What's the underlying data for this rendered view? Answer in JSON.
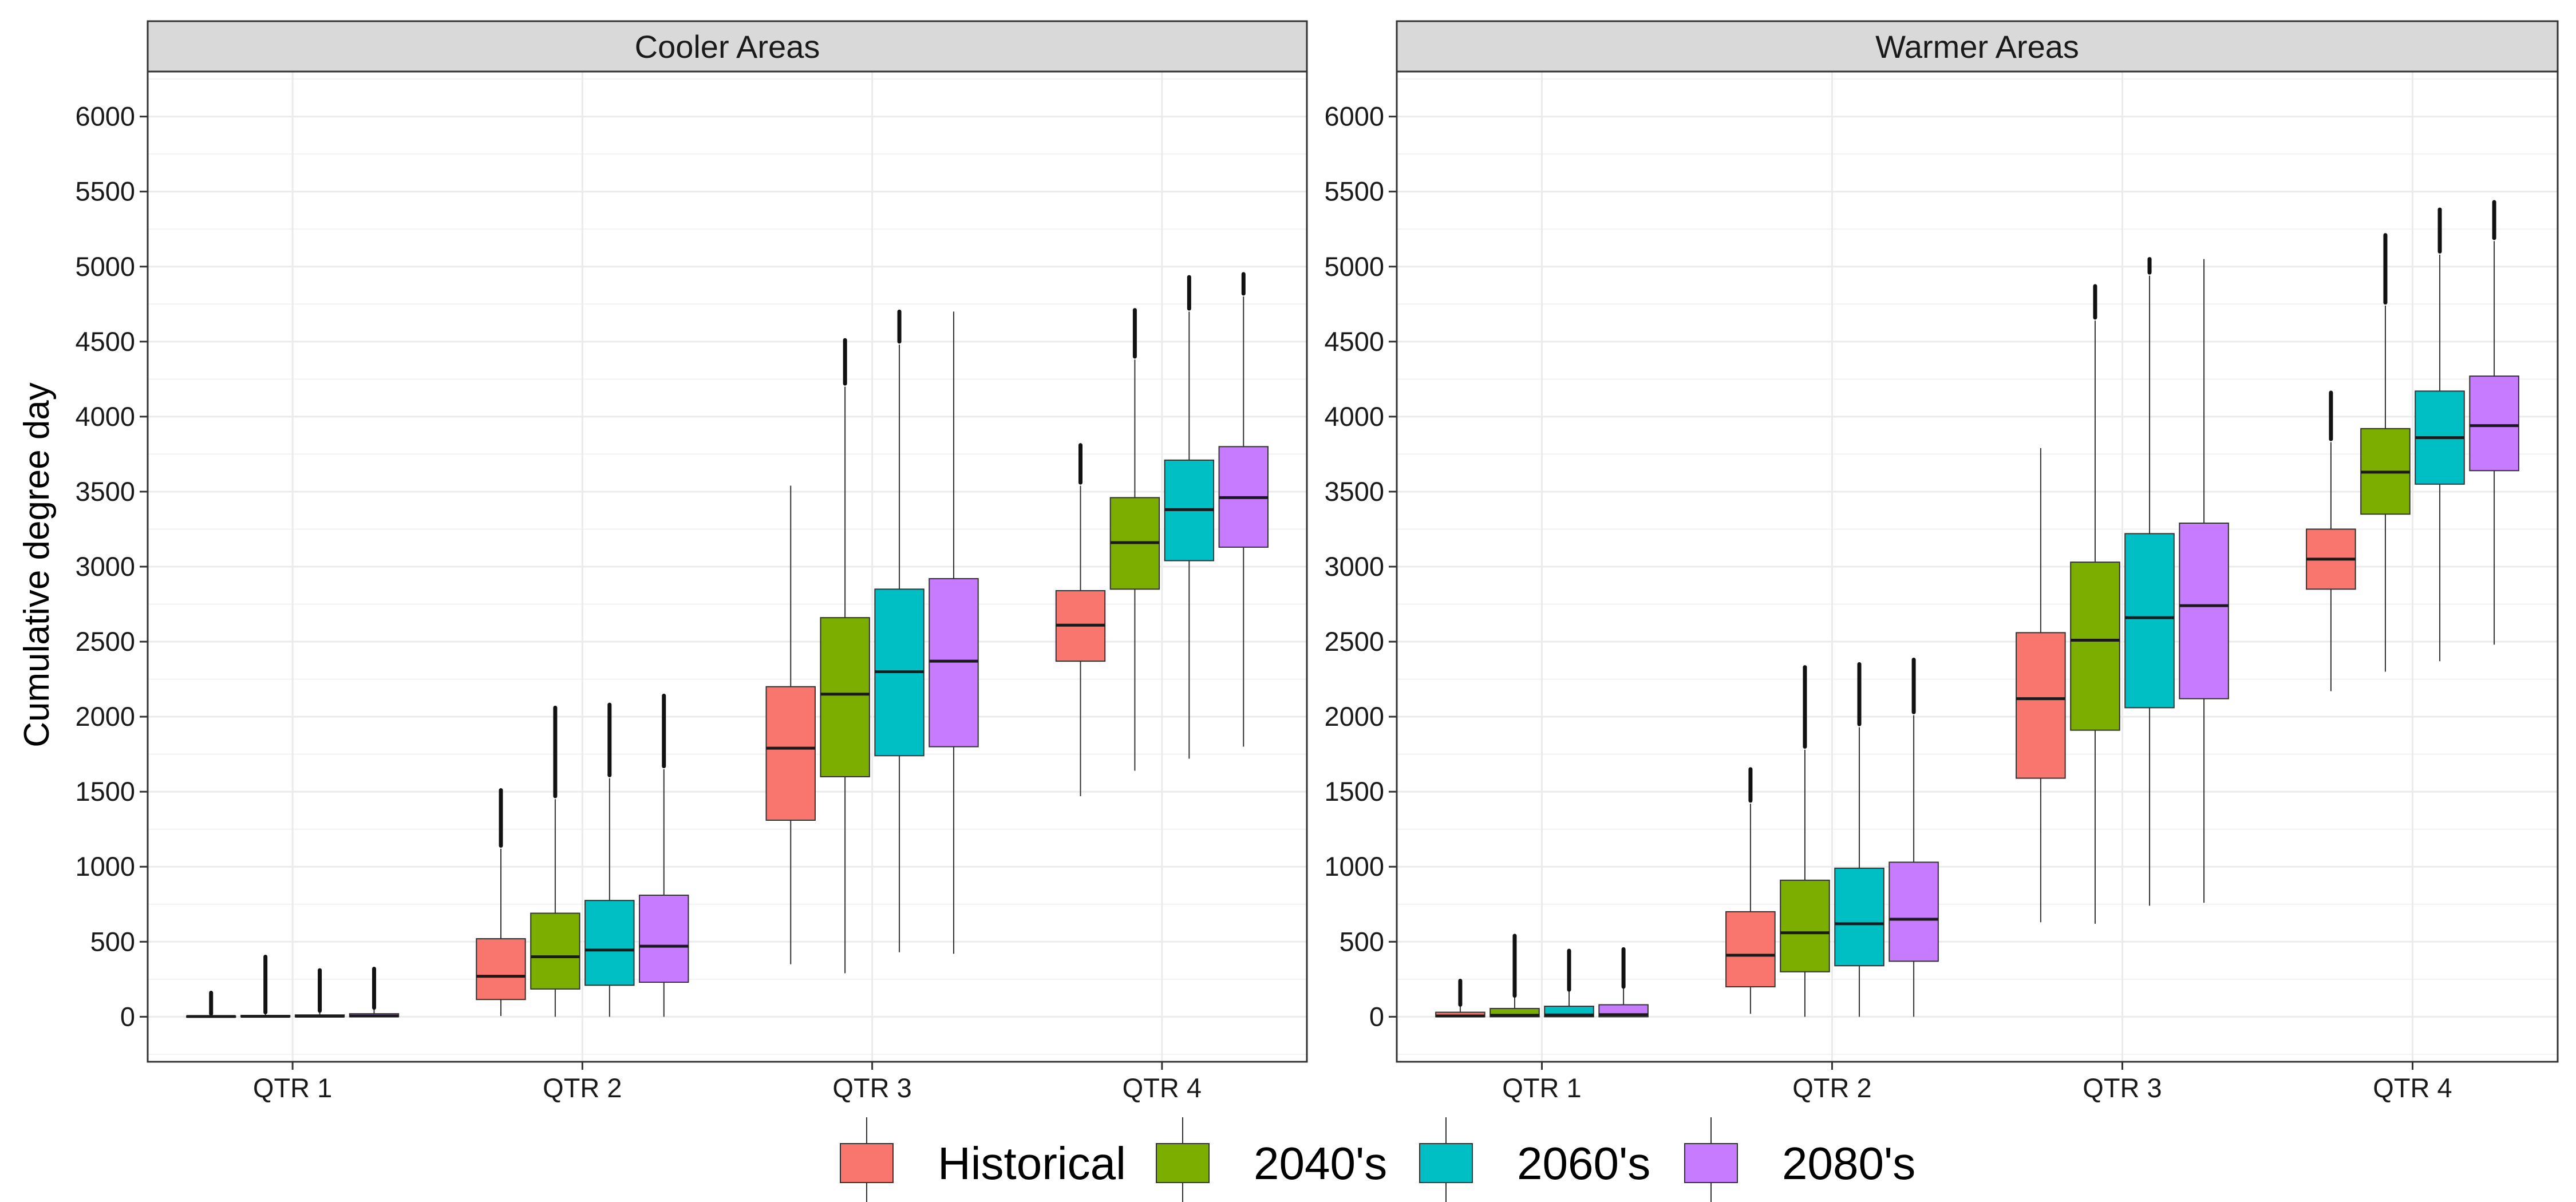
{
  "chart_data": {
    "type": "box",
    "ylabel": "Cumulative degree day",
    "xlabel": "",
    "ylim": [
      -300,
      6300
    ],
    "yticks": [
      0,
      500,
      1000,
      1500,
      2000,
      2500,
      3000,
      3500,
      4000,
      4500,
      5000,
      5500,
      6000
    ],
    "categories": [
      "QTR 1",
      "QTR 2",
      "QTR 3",
      "QTR 4"
    ],
    "grid": true,
    "legend_position": "bottom",
    "series": [
      {
        "name": "Historical",
        "color": "#F8766D"
      },
      {
        "name": "2040's",
        "color": "#7CAE00"
      },
      {
        "name": "2060's",
        "color": "#00BFC4"
      },
      {
        "name": "2080's",
        "color": "#C77CFF"
      }
    ],
    "panels": [
      {
        "title": "Cooler Areas",
        "boxes": [
          [
            {
              "low": 0,
              "q1": 0,
              "median": 2,
              "q3": 5,
              "high": 12,
              "outlier_min": 20,
              "outlier_max": 160
            },
            {
              "low": 0,
              "q1": 0,
              "median": 3,
              "q3": 8,
              "high": 20,
              "outlier_min": 30,
              "outlier_max": 400
            },
            {
              "low": 0,
              "q1": 0,
              "median": 4,
              "q3": 12,
              "high": 30,
              "outlier_min": 40,
              "outlier_max": 310
            },
            {
              "low": 0,
              "q1": 0,
              "median": 5,
              "q3": 20,
              "high": 50,
              "outlier_min": 60,
              "outlier_max": 320
            }
          ],
          [
            {
              "low": 5,
              "q1": 115,
              "median": 270,
              "q3": 520,
              "high": 1120,
              "outlier_min": 1140,
              "outlier_max": 1510
            },
            {
              "low": 0,
              "q1": 185,
              "median": 400,
              "q3": 690,
              "high": 1450,
              "outlier_min": 1470,
              "outlier_max": 2060
            },
            {
              "low": 0,
              "q1": 210,
              "median": 445,
              "q3": 775,
              "high": 1590,
              "outlier_min": 1610,
              "outlier_max": 2080
            },
            {
              "low": 0,
              "q1": 230,
              "median": 470,
              "q3": 810,
              "high": 1650,
              "outlier_min": 1670,
              "outlier_max": 2140
            }
          ],
          [
            {
              "low": 350,
              "q1": 1310,
              "median": 1790,
              "q3": 2200,
              "high": 3540,
              "outlier_min": null,
              "outlier_max": null
            },
            {
              "low": 290,
              "q1": 1600,
              "median": 2150,
              "q3": 2660,
              "high": 4200,
              "outlier_min": 4220,
              "outlier_max": 4510
            },
            {
              "low": 430,
              "q1": 1740,
              "median": 2300,
              "q3": 2850,
              "high": 4480,
              "outlier_min": 4500,
              "outlier_max": 4700
            },
            {
              "low": 420,
              "q1": 1800,
              "median": 2370,
              "q3": 2920,
              "high": 4700,
              "outlier_min": null,
              "outlier_max": null
            }
          ],
          [
            {
              "low": 1470,
              "q1": 2370,
              "median": 2610,
              "q3": 2840,
              "high": 3540,
              "outlier_min": 3560,
              "outlier_max": 3810
            },
            {
              "low": 1640,
              "q1": 2850,
              "median": 3160,
              "q3": 3460,
              "high": 4380,
              "outlier_min": 4400,
              "outlier_max": 4710
            },
            {
              "low": 1720,
              "q1": 3040,
              "median": 3380,
              "q3": 3710,
              "high": 4700,
              "outlier_min": 4720,
              "outlier_max": 4930
            },
            {
              "low": 1800,
              "q1": 3130,
              "median": 3460,
              "q3": 3800,
              "high": 4800,
              "outlier_min": 4820,
              "outlier_max": 4950
            }
          ]
        ]
      },
      {
        "title": "Warmer Areas",
        "boxes": [
          [
            {
              "low": 0,
              "q1": 0,
              "median": 5,
              "q3": 30,
              "high": 70,
              "outlier_min": 80,
              "outlier_max": 240
            },
            {
              "low": 0,
              "q1": 0,
              "median": 10,
              "q3": 55,
              "high": 130,
              "outlier_min": 140,
              "outlier_max": 540
            },
            {
              "low": 0,
              "q1": 0,
              "median": 12,
              "q3": 70,
              "high": 170,
              "outlier_min": 180,
              "outlier_max": 440
            },
            {
              "low": 0,
              "q1": 0,
              "median": 14,
              "q3": 80,
              "high": 190,
              "outlier_min": 200,
              "outlier_max": 450
            }
          ],
          [
            {
              "low": 20,
              "q1": 200,
              "median": 410,
              "q3": 700,
              "high": 1420,
              "outlier_min": 1440,
              "outlier_max": 1650
            },
            {
              "low": 0,
              "q1": 300,
              "median": 560,
              "q3": 910,
              "high": 1780,
              "outlier_min": 1800,
              "outlier_max": 2330
            },
            {
              "low": 0,
              "q1": 340,
              "median": 620,
              "q3": 990,
              "high": 1930,
              "outlier_min": 1950,
              "outlier_max": 2350
            },
            {
              "low": 0,
              "q1": 370,
              "median": 650,
              "q3": 1030,
              "high": 2010,
              "outlier_min": 2030,
              "outlier_max": 2380
            }
          ],
          [
            {
              "low": 630,
              "q1": 1590,
              "median": 2120,
              "q3": 2560,
              "high": 3790,
              "outlier_min": null,
              "outlier_max": null
            },
            {
              "low": 620,
              "q1": 1910,
              "median": 2510,
              "q3": 3030,
              "high": 4640,
              "outlier_min": 4660,
              "outlier_max": 4870
            },
            {
              "low": 740,
              "q1": 2060,
              "median": 2660,
              "q3": 3220,
              "high": 4940,
              "outlier_min": 4960,
              "outlier_max": 5050
            },
            {
              "low": 760,
              "q1": 2120,
              "median": 2740,
              "q3": 3290,
              "high": 5050,
              "outlier_min": null,
              "outlier_max": null
            }
          ],
          [
            {
              "low": 2170,
              "q1": 2850,
              "median": 3050,
              "q3": 3250,
              "high": 3830,
              "outlier_min": 3850,
              "outlier_max": 4160
            },
            {
              "low": 2300,
              "q1": 3350,
              "median": 3630,
              "q3": 3920,
              "high": 4740,
              "outlier_min": 4760,
              "outlier_max": 5210
            },
            {
              "low": 2370,
              "q1": 3550,
              "median": 3860,
              "q3": 4170,
              "high": 5080,
              "outlier_min": 5100,
              "outlier_max": 5380
            },
            {
              "low": 2480,
              "q1": 3640,
              "median": 3940,
              "q3": 4270,
              "high": 5170,
              "outlier_min": 5190,
              "outlier_max": 5430
            }
          ]
        ]
      }
    ]
  }
}
